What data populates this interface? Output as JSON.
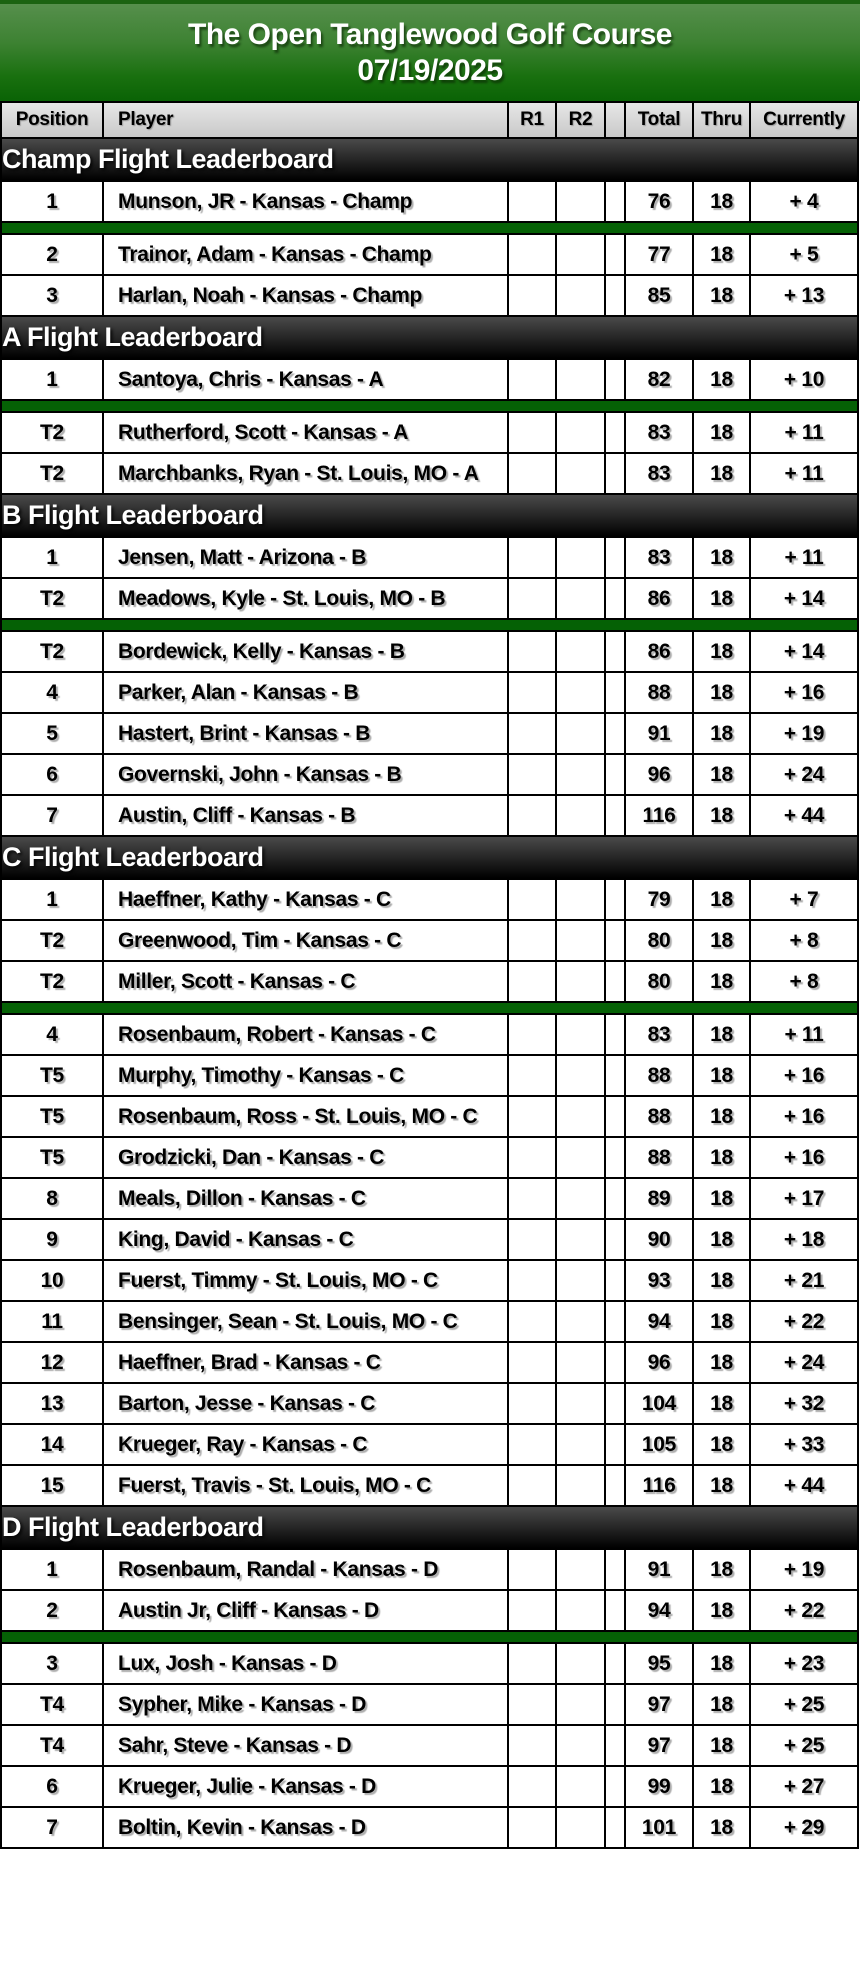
{
  "title": {
    "line1": "The Open Tanglewood Golf Course",
    "line2": "07/19/2025"
  },
  "columns": [
    {
      "key": "position",
      "label": "Position"
    },
    {
      "key": "player",
      "label": "Player"
    },
    {
      "key": "r1",
      "label": "R1"
    },
    {
      "key": "r2",
      "label": "R2"
    },
    {
      "key": "spacer",
      "label": ""
    },
    {
      "key": "total",
      "label": "Total"
    },
    {
      "key": "thru",
      "label": "Thru"
    },
    {
      "key": "currently",
      "label": "Currently"
    }
  ],
  "colors": {
    "banner_green_top": "#568f4c",
    "banner_green_bottom": "#0a6305",
    "divider_green": "#056105",
    "section_bar_top": "#4a4a4a",
    "section_bar_bottom": "#000000",
    "header_row_gray": "#d6d6d6",
    "row_text": "#000000"
  },
  "sections": [
    {
      "label": "Champ Flight Leaderboard",
      "rows": [
        {
          "position": "1",
          "player": "Munson, JR - Kansas - Champ",
          "r1": "",
          "r2": "",
          "total": "76",
          "thru": "18",
          "currently": "+ 4"
        },
        {
          "divider": true
        },
        {
          "position": "2",
          "player": "Trainor, Adam - Kansas - Champ",
          "r1": "",
          "r2": "",
          "total": "77",
          "thru": "18",
          "currently": "+ 5"
        },
        {
          "position": "3",
          "player": "Harlan, Noah - Kansas - Champ",
          "r1": "",
          "r2": "",
          "total": "85",
          "thru": "18",
          "currently": "+ 13"
        }
      ]
    },
    {
      "label": "A Flight Leaderboard",
      "rows": [
        {
          "position": "1",
          "player": "Santoya, Chris - Kansas - A",
          "r1": "",
          "r2": "",
          "total": "82",
          "thru": "18",
          "currently": "+ 10"
        },
        {
          "divider": true
        },
        {
          "position": "T2",
          "player": "Rutherford, Scott - Kansas - A",
          "r1": "",
          "r2": "",
          "total": "83",
          "thru": "18",
          "currently": "+ 11"
        },
        {
          "position": "T2",
          "player": "Marchbanks, Ryan - St. Louis, MO - A",
          "r1": "",
          "r2": "",
          "total": "83",
          "thru": "18",
          "currently": "+ 11"
        }
      ]
    },
    {
      "label": "B Flight Leaderboard",
      "rows": [
        {
          "position": "1",
          "player": "Jensen, Matt - Arizona - B",
          "r1": "",
          "r2": "",
          "total": "83",
          "thru": "18",
          "currently": "+ 11"
        },
        {
          "position": "T2",
          "player": "Meadows, Kyle - St. Louis, MO - B",
          "r1": "",
          "r2": "",
          "total": "86",
          "thru": "18",
          "currently": "+ 14"
        },
        {
          "divider": true
        },
        {
          "position": "T2",
          "player": "Bordewick, Kelly - Kansas - B",
          "r1": "",
          "r2": "",
          "total": "86",
          "thru": "18",
          "currently": "+ 14"
        },
        {
          "position": "4",
          "player": "Parker, Alan - Kansas - B",
          "r1": "",
          "r2": "",
          "total": "88",
          "thru": "18",
          "currently": "+ 16"
        },
        {
          "position": "5",
          "player": "Hastert, Brint - Kansas - B",
          "r1": "",
          "r2": "",
          "total": "91",
          "thru": "18",
          "currently": "+ 19"
        },
        {
          "position": "6",
          "player": "Governski, John - Kansas - B",
          "r1": "",
          "r2": "",
          "total": "96",
          "thru": "18",
          "currently": "+ 24"
        },
        {
          "position": "7",
          "player": "Austin, Cliff - Kansas - B",
          "r1": "",
          "r2": "",
          "total": "116",
          "thru": "18",
          "currently": "+ 44"
        }
      ]
    },
    {
      "label": "C Flight Leaderboard",
      "rows": [
        {
          "position": "1",
          "player": "Haeffner, Kathy - Kansas - C",
          "r1": "",
          "r2": "",
          "total": "79",
          "thru": "18",
          "currently": "+ 7"
        },
        {
          "position": "T2",
          "player": "Greenwood, Tim - Kansas - C",
          "r1": "",
          "r2": "",
          "total": "80",
          "thru": "18",
          "currently": "+ 8"
        },
        {
          "position": "T2",
          "player": "Miller, Scott - Kansas - C",
          "r1": "",
          "r2": "",
          "total": "80",
          "thru": "18",
          "currently": "+ 8"
        },
        {
          "divider": true
        },
        {
          "position": "4",
          "player": "Rosenbaum, Robert - Kansas - C",
          "r1": "",
          "r2": "",
          "total": "83",
          "thru": "18",
          "currently": "+ 11"
        },
        {
          "position": "T5",
          "player": "Murphy, Timothy - Kansas - C",
          "r1": "",
          "r2": "",
          "total": "88",
          "thru": "18",
          "currently": "+ 16"
        },
        {
          "position": "T5",
          "player": "Rosenbaum, Ross - St. Louis, MO - C",
          "r1": "",
          "r2": "",
          "total": "88",
          "thru": "18",
          "currently": "+ 16"
        },
        {
          "position": "T5",
          "player": "Grodzicki, Dan - Kansas - C",
          "r1": "",
          "r2": "",
          "total": "88",
          "thru": "18",
          "currently": "+ 16"
        },
        {
          "position": "8",
          "player": "Meals, Dillon - Kansas - C",
          "r1": "",
          "r2": "",
          "total": "89",
          "thru": "18",
          "currently": "+ 17"
        },
        {
          "position": "9",
          "player": "King, David - Kansas - C",
          "r1": "",
          "r2": "",
          "total": "90",
          "thru": "18",
          "currently": "+ 18"
        },
        {
          "position": "10",
          "player": "Fuerst, Timmy - St. Louis, MO - C",
          "r1": "",
          "r2": "",
          "total": "93",
          "thru": "18",
          "currently": "+ 21"
        },
        {
          "position": "11",
          "player": "Bensinger, Sean - St. Louis, MO - C",
          "r1": "",
          "r2": "",
          "total": "94",
          "thru": "18",
          "currently": "+ 22"
        },
        {
          "position": "12",
          "player": "Haeffner, Brad - Kansas - C",
          "r1": "",
          "r2": "",
          "total": "96",
          "thru": "18",
          "currently": "+ 24"
        },
        {
          "position": "13",
          "player": "Barton, Jesse - Kansas - C",
          "r1": "",
          "r2": "",
          "total": "104",
          "thru": "18",
          "currently": "+ 32"
        },
        {
          "position": "14",
          "player": "Krueger, Ray - Kansas - C",
          "r1": "",
          "r2": "",
          "total": "105",
          "thru": "18",
          "currently": "+ 33"
        },
        {
          "position": "15",
          "player": "Fuerst, Travis - St. Louis, MO - C",
          "r1": "",
          "r2": "",
          "total": "116",
          "thru": "18",
          "currently": "+ 44"
        }
      ]
    },
    {
      "label": "D Flight Leaderboard",
      "rows": [
        {
          "position": "1",
          "player": "Rosenbaum, Randal - Kansas - D",
          "r1": "",
          "r2": "",
          "total": "91",
          "thru": "18",
          "currently": "+ 19"
        },
        {
          "position": "2",
          "player": "Austin Jr, Cliff - Kansas - D",
          "r1": "",
          "r2": "",
          "total": "94",
          "thru": "18",
          "currently": "+ 22"
        },
        {
          "divider": true
        },
        {
          "position": "3",
          "player": "Lux, Josh - Kansas - D",
          "r1": "",
          "r2": "",
          "total": "95",
          "thru": "18",
          "currently": "+ 23"
        },
        {
          "position": "T4",
          "player": "Sypher, Mike - Kansas - D",
          "r1": "",
          "r2": "",
          "total": "97",
          "thru": "18",
          "currently": "+ 25"
        },
        {
          "position": "T4",
          "player": "Sahr, Steve - Kansas - D",
          "r1": "",
          "r2": "",
          "total": "97",
          "thru": "18",
          "currently": "+ 25"
        },
        {
          "position": "6",
          "player": "Krueger, Julie - Kansas - D",
          "r1": "",
          "r2": "",
          "total": "99",
          "thru": "18",
          "currently": "+ 27"
        },
        {
          "position": "7",
          "player": "Boltin, Kevin - Kansas - D",
          "r1": "",
          "r2": "",
          "total": "101",
          "thru": "18",
          "currently": "+ 29"
        }
      ]
    }
  ]
}
